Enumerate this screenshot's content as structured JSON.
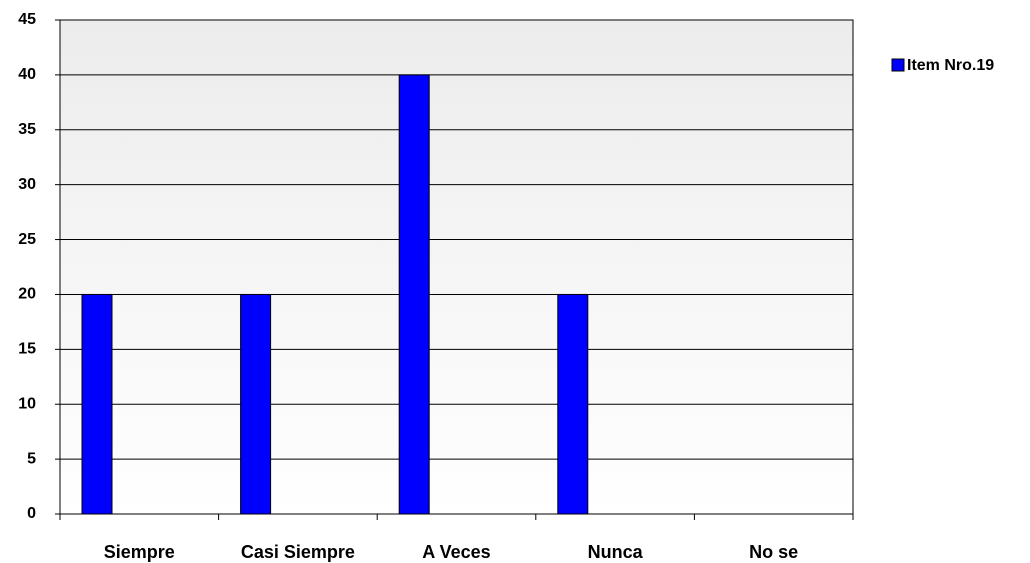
{
  "chart_data": {
    "type": "bar",
    "categories": [
      "Siempre",
      "Casi Siempre",
      "A Veces",
      "Nunca",
      "No se"
    ],
    "series": [
      {
        "name": "Item Nro.19",
        "color": "#0000ff",
        "values": [
          20,
          20,
          40,
          20,
          0
        ]
      }
    ],
    "ylim": [
      0,
      45
    ],
    "yticks": [
      0,
      5,
      10,
      15,
      20,
      25,
      30,
      35,
      40,
      45
    ],
    "grid": true,
    "legend": "right"
  }
}
